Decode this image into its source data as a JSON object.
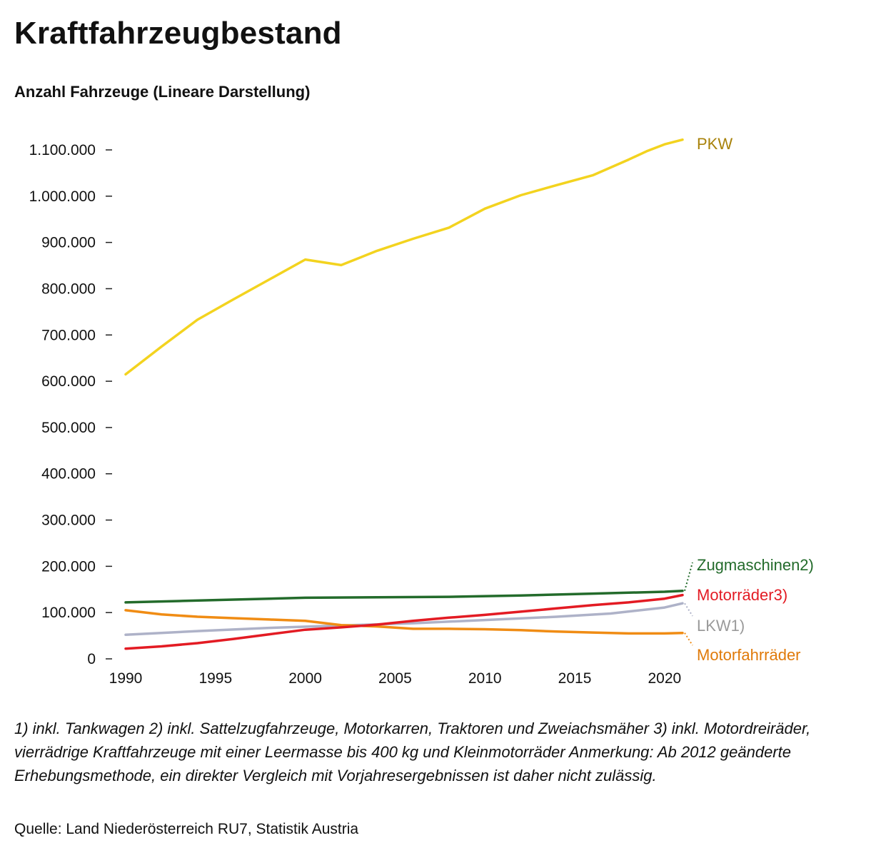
{
  "header": {
    "title": "Kraftfahrzeugbestand",
    "subtitle": "Anzahl Fahrzeuge (Lineare Darstellung)"
  },
  "footer": {
    "note": "1) inkl. Tankwagen 2) inkl. Sattelzugfahrzeuge, Motorkarren, Traktoren und Zweiachsmäher 3) inkl. Motordreiräder, vierrädrige Kraftfahrzeuge mit einer Leermasse bis 400 kg und Kleinmotorräder Anmerkung: Ab 2012 geänderte Erhebungsmethode, ein direkter Vergleich mit Vorjahresergebnissen ist daher nicht zulässig.",
    "source": "Quelle: Land Niederösterreich RU7, Statistik Austria"
  },
  "chart_data": {
    "type": "line",
    "title": "Kraftfahrzeugbestand",
    "subtitle": "Anzahl Fahrzeuge (Lineare Darstellung)",
    "xlim": [
      1990,
      2021
    ],
    "ylim": [
      0,
      1100000
    ],
    "x_ticks": [
      1990,
      1995,
      2000,
      2005,
      2010,
      2015,
      2020
    ],
    "y_ticks": [
      0,
      100000,
      200000,
      300000,
      400000,
      500000,
      600000,
      700000,
      800000,
      900000,
      1000000,
      1100000
    ],
    "y_tick_labels": [
      "0",
      "100.000",
      "200.000",
      "300.000",
      "400.000",
      "500.000",
      "600.000",
      "700.000",
      "800.000",
      "900.000",
      "1.000.000",
      "1.100.000"
    ],
    "grid": false,
    "legend": "inline-right",
    "series": [
      {
        "name": "PKW",
        "color": "#f3d31f",
        "label_color": "#a8820a",
        "points": [
          [
            1990,
            615000
          ],
          [
            1992,
            675000
          ],
          [
            1994,
            733000
          ],
          [
            1996,
            777000
          ],
          [
            1998,
            820000
          ],
          [
            2000,
            863000
          ],
          [
            2002,
            851000
          ],
          [
            2004,
            882000
          ],
          [
            2006,
            908000
          ],
          [
            2008,
            932000
          ],
          [
            2010,
            973000
          ],
          [
            2012,
            1002000
          ],
          [
            2014,
            1024000
          ],
          [
            2016,
            1045000
          ],
          [
            2018,
            1079000
          ],
          [
            2019,
            1097000
          ],
          [
            2020,
            1112000
          ],
          [
            2021,
            1122000
          ]
        ]
      },
      {
        "name": "Zugmaschinen2)",
        "color": "#236b2b",
        "label_color": "#236b2b",
        "points": [
          [
            1990,
            122000
          ],
          [
            1993,
            125000
          ],
          [
            1996,
            128000
          ],
          [
            2000,
            132000
          ],
          [
            2004,
            133000
          ],
          [
            2008,
            134000
          ],
          [
            2012,
            137000
          ],
          [
            2016,
            141000
          ],
          [
            2020,
            145000
          ],
          [
            2021,
            147000
          ]
        ]
      },
      {
        "name": "Motorräder3)",
        "color": "#e31b23",
        "label_color": "#e31b23",
        "points": [
          [
            1990,
            22000
          ],
          [
            1992,
            27000
          ],
          [
            1994,
            34000
          ],
          [
            1996,
            43000
          ],
          [
            1998,
            53000
          ],
          [
            2000,
            63000
          ],
          [
            2002,
            68000
          ],
          [
            2004,
            74000
          ],
          [
            2006,
            82000
          ],
          [
            2008,
            89000
          ],
          [
            2010,
            95000
          ],
          [
            2012,
            102000
          ],
          [
            2014,
            109000
          ],
          [
            2016,
            116000
          ],
          [
            2018,
            122000
          ],
          [
            2020,
            130000
          ],
          [
            2021,
            138000
          ]
        ]
      },
      {
        "name": "LKW1)",
        "color": "#aeb2c8",
        "label_color": "#9a9a9a",
        "points": [
          [
            1990,
            52000
          ],
          [
            1994,
            60000
          ],
          [
            1998,
            67000
          ],
          [
            2002,
            72000
          ],
          [
            2006,
            77000
          ],
          [
            2010,
            84000
          ],
          [
            2014,
            91000
          ],
          [
            2017,
            98000
          ],
          [
            2020,
            111000
          ],
          [
            2021,
            120000
          ]
        ]
      },
      {
        "name": "Motorfahrräder",
        "color": "#f08c14",
        "label_color": "#e07a0a",
        "points": [
          [
            1990,
            105000
          ],
          [
            1992,
            96000
          ],
          [
            1994,
            91000
          ],
          [
            1996,
            88000
          ],
          [
            1998,
            85000
          ],
          [
            2000,
            82000
          ],
          [
            2002,
            73000
          ],
          [
            2004,
            70000
          ],
          [
            2006,
            65000
          ],
          [
            2008,
            65000
          ],
          [
            2010,
            64000
          ],
          [
            2012,
            62000
          ],
          [
            2014,
            59000
          ],
          [
            2016,
            57000
          ],
          [
            2018,
            55000
          ],
          [
            2020,
            55000
          ],
          [
            2021,
            56000
          ]
        ]
      }
    ]
  }
}
